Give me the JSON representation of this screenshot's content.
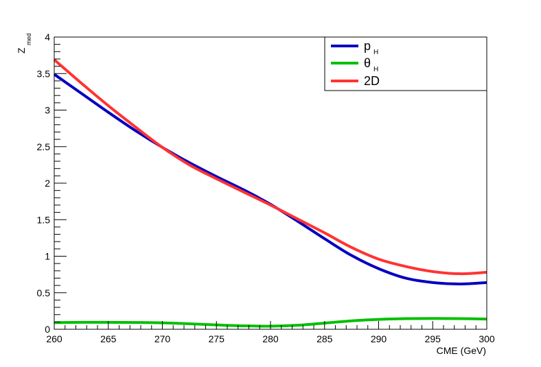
{
  "chart_data": {
    "type": "line",
    "title": "",
    "xlabel": "CME (GeV)",
    "ylabel": {
      "main": "Z",
      "sub": "med"
    },
    "xlim": [
      260,
      300
    ],
    "ylim": [
      0,
      4
    ],
    "x_ticks": [
      "260",
      "265",
      "270",
      "275",
      "280",
      "285",
      "290",
      "295",
      "300"
    ],
    "y_ticks": [
      "0",
      "0.5",
      "1",
      "1.5",
      "2",
      "2.5",
      "3",
      "3.5",
      "4"
    ],
    "grid": false,
    "legend_position": "top-right",
    "series": [
      {
        "name": "p",
        "name_sub": "H",
        "color": "#0000c0",
        "x": [
          260,
          262.5,
          265,
          267.5,
          270,
          272.5,
          275,
          277.5,
          280,
          282.5,
          285,
          287.5,
          290,
          292.5,
          295,
          297.5,
          300
        ],
        "y": [
          3.49,
          3.23,
          2.97,
          2.72,
          2.49,
          2.28,
          2.09,
          1.91,
          1.71,
          1.48,
          1.24,
          1.01,
          0.83,
          0.7,
          0.64,
          0.62,
          0.64
        ]
      },
      {
        "name": "θ",
        "name_sub": "H",
        "color": "#00c000",
        "x": [
          260,
          262.5,
          265,
          267.5,
          270,
          272.5,
          275,
          277.5,
          280,
          282.5,
          285,
          287.5,
          290,
          292.5,
          295,
          297.5,
          300
        ],
        "y": [
          0.09,
          0.095,
          0.095,
          0.093,
          0.088,
          0.075,
          0.06,
          0.047,
          0.042,
          0.055,
          0.085,
          0.115,
          0.135,
          0.145,
          0.148,
          0.146,
          0.14
        ]
      },
      {
        "name": "2D",
        "name_sub": "",
        "color": "#ff3333",
        "x": [
          260,
          262.5,
          265,
          267.5,
          270,
          272.5,
          275,
          277.5,
          280,
          282.5,
          285,
          287.5,
          290,
          292.5,
          295,
          297.5,
          300
        ],
        "y": [
          3.69,
          3.37,
          3.06,
          2.77,
          2.49,
          2.25,
          2.06,
          1.88,
          1.7,
          1.51,
          1.32,
          1.12,
          0.96,
          0.86,
          0.79,
          0.76,
          0.78
        ]
      }
    ]
  }
}
